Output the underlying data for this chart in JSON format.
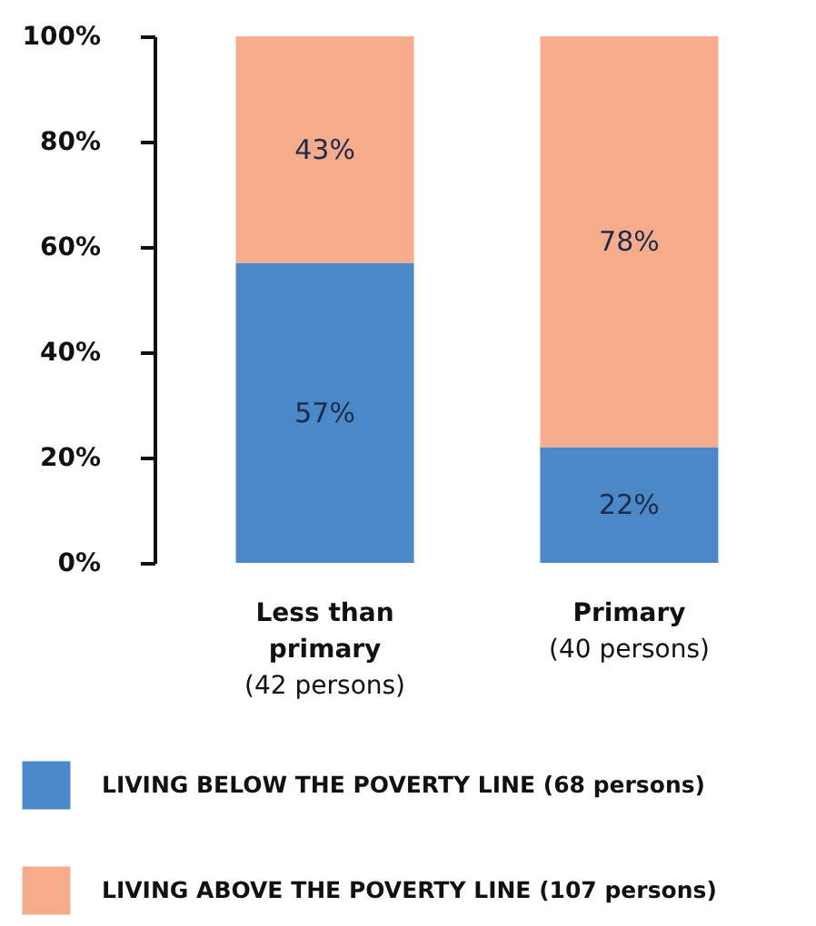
{
  "chart_data": {
    "type": "bar",
    "stacked": true,
    "categories": [
      "Less than\nprimary\n(42 persons)",
      "Primary\n(40 persons)"
    ],
    "series": [
      {
        "name": "LIVING BELOW THE POVERTY LINE (68 persons)",
        "color": "#4a88c8",
        "values": [
          57,
          22
        ],
        "value_labels": [
          "57%",
          "22%"
        ]
      },
      {
        "name": "LIVING ABOVE THE POVERTY LINE (107 persons)",
        "color": "#f6ab8b",
        "values": [
          43,
          78
        ],
        "value_labels": [
          "43%",
          "78%"
        ]
      }
    ],
    "ylim": [
      0,
      100
    ],
    "yticks": [
      {
        "value": 0,
        "label": "0%"
      },
      {
        "value": 20,
        "label": "20%"
      },
      {
        "value": 40,
        "label": "40%"
      },
      {
        "value": 60,
        "label": "60%"
      },
      {
        "value": 80,
        "label": "80%"
      },
      {
        "value": 100,
        "label": "100%"
      }
    ],
    "grid": false,
    "legend": "bottom"
  }
}
